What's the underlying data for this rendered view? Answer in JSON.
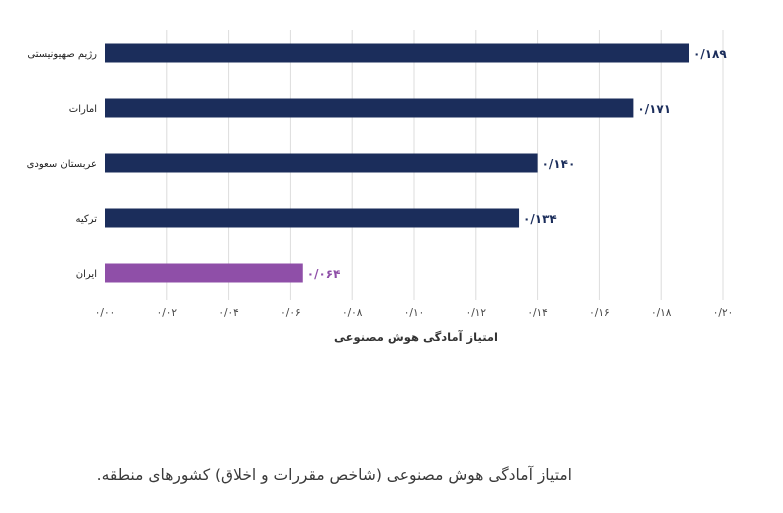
{
  "caption": "امتیاز آمادگی هوش مصنوعی (شاخص مقررات و اخلاق) کشورهای منطقه.",
  "chart_data": {
    "type": "bar",
    "orientation": "horizontal",
    "categories": [
      "رژیم صهیونیستی",
      "امارات",
      "عربستان سعودی",
      "ترکیه",
      "ایران"
    ],
    "values": [
      0.189,
      0.171,
      0.14,
      0.134,
      0.064
    ],
    "value_labels": [
      "۰/۱۸۹",
      "۰/۱۷۱",
      "۰/۱۴۰",
      "۰/۱۳۴",
      "۰/۰۶۴"
    ],
    "bar_colors": [
      "#1b2d5b",
      "#1b2d5b",
      "#1b2d5b",
      "#1b2d5b",
      "#8f4fa8"
    ],
    "label_colors": [
      "#1b2d5b",
      "#1b2d5b",
      "#1b2d5b",
      "#1b2d5b",
      "#8f4fa8"
    ],
    "xlabel": "امتیاز آمادگی هوش مصنوعی",
    "xlim": [
      0,
      0.2
    ],
    "xticks": [
      0,
      0.02,
      0.04,
      0.06,
      0.08,
      0.1,
      0.12,
      0.14,
      0.16,
      0.18,
      0.2
    ],
    "xtick_labels": [
      "۰/۰۰",
      "۰/۰۲",
      "۰/۰۴",
      "۰/۰۶",
      "۰/۰۸",
      "۰/۱۰",
      "۰/۱۲",
      "۰/۱۴",
      "۰/۱۶",
      "۰/۱۸",
      "۰/۲۰"
    ],
    "grid": "vertical",
    "grid_color": "#dcdcdc",
    "legend": "none"
  }
}
